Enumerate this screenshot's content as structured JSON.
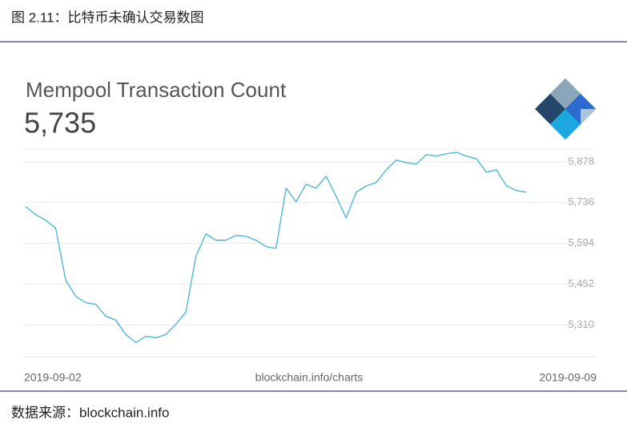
{
  "caption": "图 2.11：比特币未确认交易数图",
  "source": "数据来源：blockchain.info",
  "chart_data": {
    "type": "line",
    "title": "Mempool Transaction Count",
    "headline": "5,735",
    "footer": "blockchain.info/charts",
    "categories": [
      "2019-09-02",
      null,
      null,
      null,
      null,
      null,
      null,
      null,
      null,
      null,
      null,
      null,
      null,
      null,
      null,
      null,
      null,
      null,
      null,
      null,
      null,
      null,
      null,
      null,
      null,
      null,
      null,
      null,
      null,
      null,
      null,
      null,
      null,
      null,
      null,
      null,
      null,
      null,
      null,
      null,
      null,
      null,
      null,
      null,
      null,
      null,
      null,
      null,
      null,
      null,
      null,
      null,
      null,
      null,
      null,
      null,
      null,
      "2019-09-09"
    ],
    "values": [
      5722,
      5694,
      5675,
      5647,
      5466,
      5410,
      5388,
      5382,
      5341,
      5327,
      5277,
      5249,
      5271,
      5266,
      5277,
      5313,
      5355,
      5549,
      5627,
      5605,
      5605,
      5622,
      5619,
      5605,
      5583,
      5577,
      5786,
      5739,
      5800,
      5786,
      5828,
      5758,
      5683,
      5772,
      5794,
      5806,
      5850,
      5884,
      5875,
      5870,
      5903,
      5898,
      5906,
      5911,
      5898,
      5889,
      5842,
      5850,
      5794,
      5778,
      5772,
      null,
      null,
      null,
      null,
      null,
      null,
      null
    ],
    "color": "#4fb6d9",
    "ylim": [
      5200,
      5925
    ],
    "yticks": [
      {
        "value": 5310,
        "label": "5,310"
      },
      {
        "value": 5452,
        "label": "5,452"
      },
      {
        "value": 5594,
        "label": "5,594"
      },
      {
        "value": 5736,
        "label": "5,736"
      },
      {
        "value": 5878,
        "label": "5,878"
      }
    ],
    "grid": true
  }
}
